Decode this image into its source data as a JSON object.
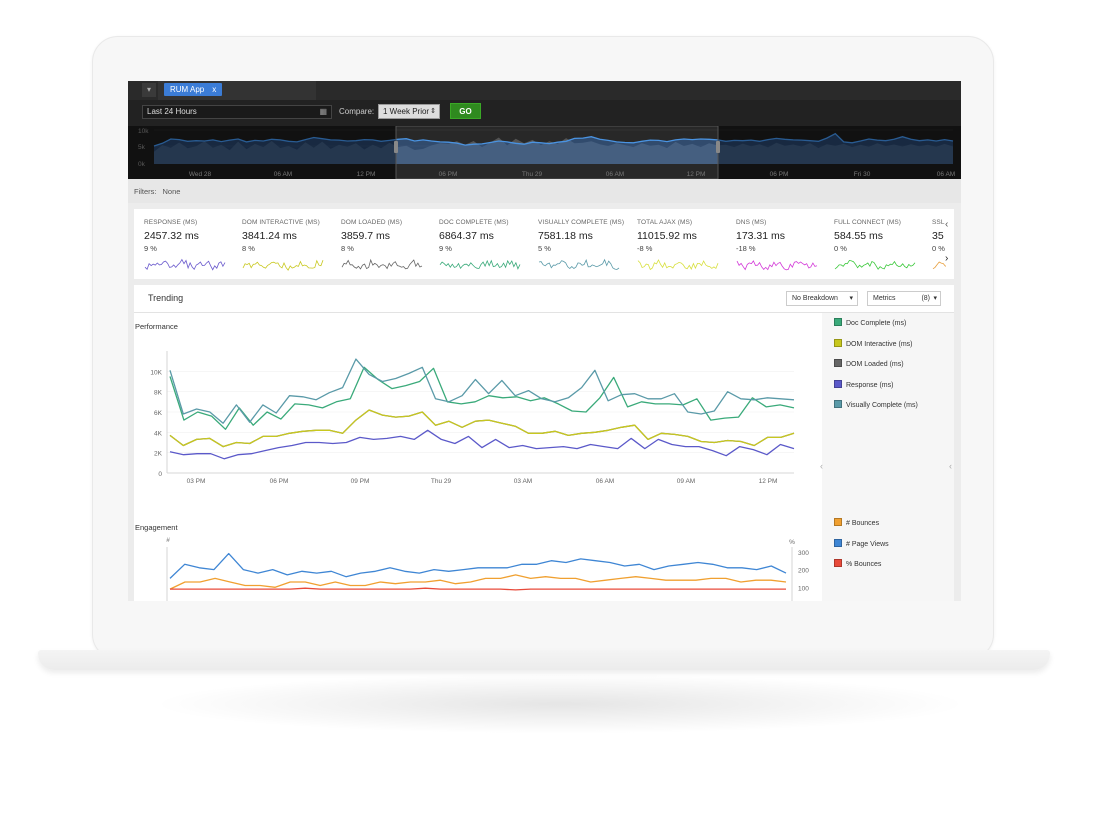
{
  "app": {
    "tab_label": "RUM App",
    "tab_close": "x",
    "menu_glyph": "▾"
  },
  "controls": {
    "range_value": "Last 24 Hours",
    "calendar_glyph": "▦",
    "compare_label": "Compare:",
    "compare_value": "1 Week Prior",
    "compare_glyph": "⇕",
    "go_label": "GO"
  },
  "overview": {
    "y_ticks": [
      "10k",
      "5k",
      "0k"
    ],
    "x_ticks": [
      "Wed 28",
      "06 AM",
      "12 PM",
      "06 PM",
      "Thu 29",
      "06 AM",
      "12 PM",
      "06 PM",
      "Fri 30",
      "06 AM"
    ]
  },
  "filters": {
    "label": "Filters:",
    "value": "None"
  },
  "kpis": [
    {
      "label": "RESPONSE (MS)",
      "value": "2457.32 ms",
      "pct": "9 %",
      "color": "#6a5acd"
    },
    {
      "label": "DOM INTERACTIVE (MS)",
      "value": "3841.24 ms",
      "pct": "8 %",
      "color": "#c8c81e"
    },
    {
      "label": "DOM LOADED (MS)",
      "value": "3859.7 ms",
      "pct": "8 %",
      "color": "#666666"
    },
    {
      "label": "DOC COMPLETE (MS)",
      "value": "6864.37 ms",
      "pct": "9 %",
      "color": "#3aaa7a"
    },
    {
      "label": "VISUALLY COMPLETE (MS)",
      "value": "7581.18 ms",
      "pct": "5 %",
      "color": "#5a9aa8"
    },
    {
      "label": "TOTAL AJAX (MS)",
      "value": "11015.92 ms",
      "pct": "-8 %",
      "color": "#d8e040"
    },
    {
      "label": "DNS (MS)",
      "value": "173.31 ms",
      "pct": "-18 %",
      "color": "#d33ad8"
    },
    {
      "label": "FULL CONNECT (MS)",
      "value": "584.55 ms",
      "pct": "0 %",
      "color": "#3ac83a"
    },
    {
      "label": "SSL",
      "value": "35",
      "pct": "0 %",
      "color": "#e8a040"
    }
  ],
  "kpi_nav": {
    "prev": "‹",
    "next": "›"
  },
  "trending": {
    "title": "Trending",
    "breakdown": "No Breakdown",
    "breakdown_arrow": "▾",
    "metrics_label": "Metrics",
    "metrics_count": "(8)",
    "metrics_arrow": "▾"
  },
  "chart_data": [
    {
      "type": "line",
      "title": "Performance",
      "y_ticks": [
        "10K",
        "8K",
        "6K",
        "4K",
        "2K",
        "0"
      ],
      "x_ticks": [
        "03 PM",
        "06 PM",
        "09 PM",
        "Thu 29",
        "03 AM",
        "06 AM",
        "09 AM",
        "12 PM"
      ],
      "ylim": [
        0,
        12000
      ],
      "series": [
        {
          "name": "Doc Complete (ms)",
          "color": "#3aaa7a",
          "values": [
            9500,
            5200,
            6000,
            5600,
            4300,
            6400,
            4700,
            6000,
            5300,
            6800,
            6700,
            6400,
            7000,
            7300,
            10400,
            9200,
            8300,
            8600,
            9000,
            10300,
            7000,
            6800,
            7000,
            7600,
            7400,
            7500,
            7100,
            7400,
            6800,
            6100,
            6000,
            7400,
            9400,
            6500,
            7000,
            6800,
            6800,
            6700,
            7300,
            5200,
            5400,
            5500,
            7400,
            6500,
            6700,
            6400
          ]
        },
        {
          "name": "DOM Interactive (ms)",
          "color": "#c8c81e",
          "values": [
            3700,
            2700,
            3300,
            3400,
            2600,
            3000,
            2900,
            3600,
            3600,
            3900,
            4100,
            4200,
            4200,
            3900,
            5200,
            6200,
            5700,
            5500,
            5600,
            6000,
            4700,
            5100,
            4500,
            5100,
            5200,
            4900,
            4600,
            3900,
            3900,
            4100,
            3700,
            3900,
            4000,
            4200,
            4500,
            4700,
            3300,
            3900,
            3800,
            3600,
            3100,
            3000,
            3200,
            3100,
            2700,
            3500,
            3500,
            3900
          ]
        },
        {
          "name": "DOM Loaded (ms)",
          "color": "#666666",
          "values": [
            3700,
            2700,
            3300,
            3400,
            2600,
            3000,
            2900,
            3600,
            3600,
            3900,
            4100,
            4200,
            4200,
            3900,
            5200,
            6200,
            5700,
            5500,
            5600,
            6000,
            4700,
            5100,
            4500,
            5100,
            5200,
            4900,
            4600,
            3900,
            3900,
            4100,
            3700,
            3900,
            4000,
            4200,
            4500,
            4700,
            3300,
            3900,
            3800,
            3600,
            3100,
            3000,
            3200,
            3100,
            2700,
            3500,
            3500,
            3900
          ]
        },
        {
          "name": "Response (ms)",
          "color": "#5b59c9",
          "values": [
            2100,
            1800,
            1900,
            1900,
            1400,
            1800,
            1900,
            2200,
            2500,
            2700,
            3000,
            3000,
            2900,
            3000,
            3500,
            3300,
            3400,
            3600,
            3300,
            4200,
            3300,
            2900,
            3600,
            2500,
            3300,
            2500,
            2700,
            2400,
            2500,
            2600,
            2400,
            2800,
            2600,
            2400,
            3400,
            2400,
            3300,
            2800,
            2600,
            2600,
            2200,
            1700,
            2600,
            2300,
            1800,
            2800,
            2400
          ]
        },
        {
          "name": "Visually Complete (ms)",
          "color": "#5a9aa8",
          "values": [
            10100,
            5800,
            6300,
            6000,
            4900,
            6700,
            5000,
            6700,
            5900,
            7600,
            7500,
            7200,
            7900,
            8400,
            11200,
            9700,
            9000,
            9300,
            9800,
            10400,
            7300,
            7000,
            7600,
            9200,
            7800,
            9100,
            7600,
            8100,
            7300,
            7000,
            7400,
            8400,
            10100,
            7100,
            7700,
            7800,
            7300,
            7300,
            7800,
            6000,
            5800,
            6100,
            8000,
            7300,
            7200,
            7400,
            7300,
            7200
          ]
        }
      ],
      "legend": [
        "Doc Complete (ms)",
        "DOM Interactive (ms)",
        "DOM Loaded (ms)",
        "Response (ms)",
        "Visually Complete (ms)"
      ]
    },
    {
      "type": "line",
      "title": "Engagement",
      "y_left_label": "#",
      "y_right_label": "%",
      "y_right_ticks": [
        "300",
        "200",
        "100"
      ],
      "ylim": [
        0,
        350
      ],
      "series": [
        {
          "name": "# Bounces",
          "color": "#f0a030",
          "values": [
            90,
            130,
            130,
            150,
            130,
            110,
            110,
            100,
            130,
            130,
            110,
            130,
            110,
            110,
            130,
            120,
            130,
            130,
            140,
            120,
            130,
            150,
            150,
            170,
            150,
            160,
            150,
            150,
            130,
            140,
            150,
            160,
            150,
            140,
            140,
            140,
            150,
            150,
            130,
            140,
            140,
            130
          ]
        },
        {
          "name": "# Page Views",
          "color": "#3f86d4",
          "values": [
            150,
            230,
            210,
            200,
            290,
            200,
            180,
            200,
            170,
            190,
            180,
            190,
            160,
            180,
            190,
            210,
            190,
            180,
            200,
            190,
            200,
            210,
            210,
            210,
            230,
            230,
            250,
            240,
            260,
            250,
            240,
            220,
            230,
            200,
            220,
            230,
            240,
            230,
            210,
            210,
            200,
            220,
            180
          ]
        },
        {
          "name": "% Bounces",
          "color": "#e84a3a",
          "values": [
            90,
            90,
            90,
            90,
            90,
            90,
            90,
            90,
            90,
            95,
            90,
            90,
            90,
            90,
            90,
            90,
            90,
            95,
            90,
            90,
            90,
            90,
            90,
            85,
            90,
            90,
            90,
            90,
            90,
            90,
            90,
            90,
            90,
            90,
            90,
            90,
            90,
            90,
            90,
            90,
            90,
            90
          ]
        }
      ],
      "legend": [
        "# Bounces",
        "# Page Views",
        "% Bounces"
      ]
    }
  ],
  "overview_series": {
    "primary": [
      6200,
      7100,
      8600,
      8400,
      7800,
      8000,
      7900,
      8300,
      7700,
      8200,
      8600,
      7600,
      8100,
      7900,
      8500,
      8300,
      7800,
      7600,
      8400,
      9100,
      8700,
      8300,
      8200,
      7900,
      8000,
      8400,
      8300,
      7800,
      8100,
      8500,
      8700,
      7900,
      8300,
      7900,
      7600,
      7500,
      7200,
      6500,
      6800,
      6900,
      7400,
      7900,
      7600,
      7100,
      6800,
      7500,
      7300,
      7000,
      7500,
      7800,
      8800,
      8900,
      9400,
      8500,
      8100,
      7600,
      7400,
      7300,
      7800,
      8200,
      8100,
      7700,
      8300,
      8600,
      8400,
      8600,
      8500,
      8300,
      7800,
      8100,
      8000,
      8200,
      7800,
      8400,
      8800,
      8500,
      8300,
      8200,
      8000,
      7800,
      8900,
      10400,
      7600,
      7300,
      7900,
      8600,
      8200,
      8000,
      8500,
      9400,
      8500,
      8000,
      8300,
      7900,
      8400,
      7900
    ],
    "compare": [
      4200,
      6500,
      5600,
      7400,
      5400,
      6100,
      7800,
      5600,
      6600,
      4700,
      7700,
      5100,
      6900,
      5800,
      7900,
      5500,
      6200,
      4900,
      7500,
      5600,
      7700,
      5200,
      6600,
      5900,
      7100,
      5000,
      6600,
      5400,
      7300,
      5800,
      6300,
      4800,
      5200,
      6400,
      7100,
      6900,
      7800,
      6600,
      7900,
      5800,
      7400,
      9100,
      6400,
      8700,
      7100,
      8300,
      6500,
      7800,
      6900,
      8900,
      7100,
      7300,
      7800,
      6800,
      6200,
      7100,
      6500,
      5800,
      7100,
      6300,
      6600,
      5500,
      7600,
      6200,
      6900,
      5800,
      7100,
      6400,
      6600,
      5800,
      7000,
      6100,
      6800,
      5700,
      7300,
      6300,
      6700,
      6000,
      7200,
      5500,
      6800,
      6300,
      6900,
      5800,
      6600,
      5900,
      7100,
      6200,
      6700,
      6000,
      6800,
      6100,
      6600,
      5900,
      6900,
      6000
    ]
  },
  "legend_chevrons": {
    "left": "‹",
    "right": "‹"
  }
}
